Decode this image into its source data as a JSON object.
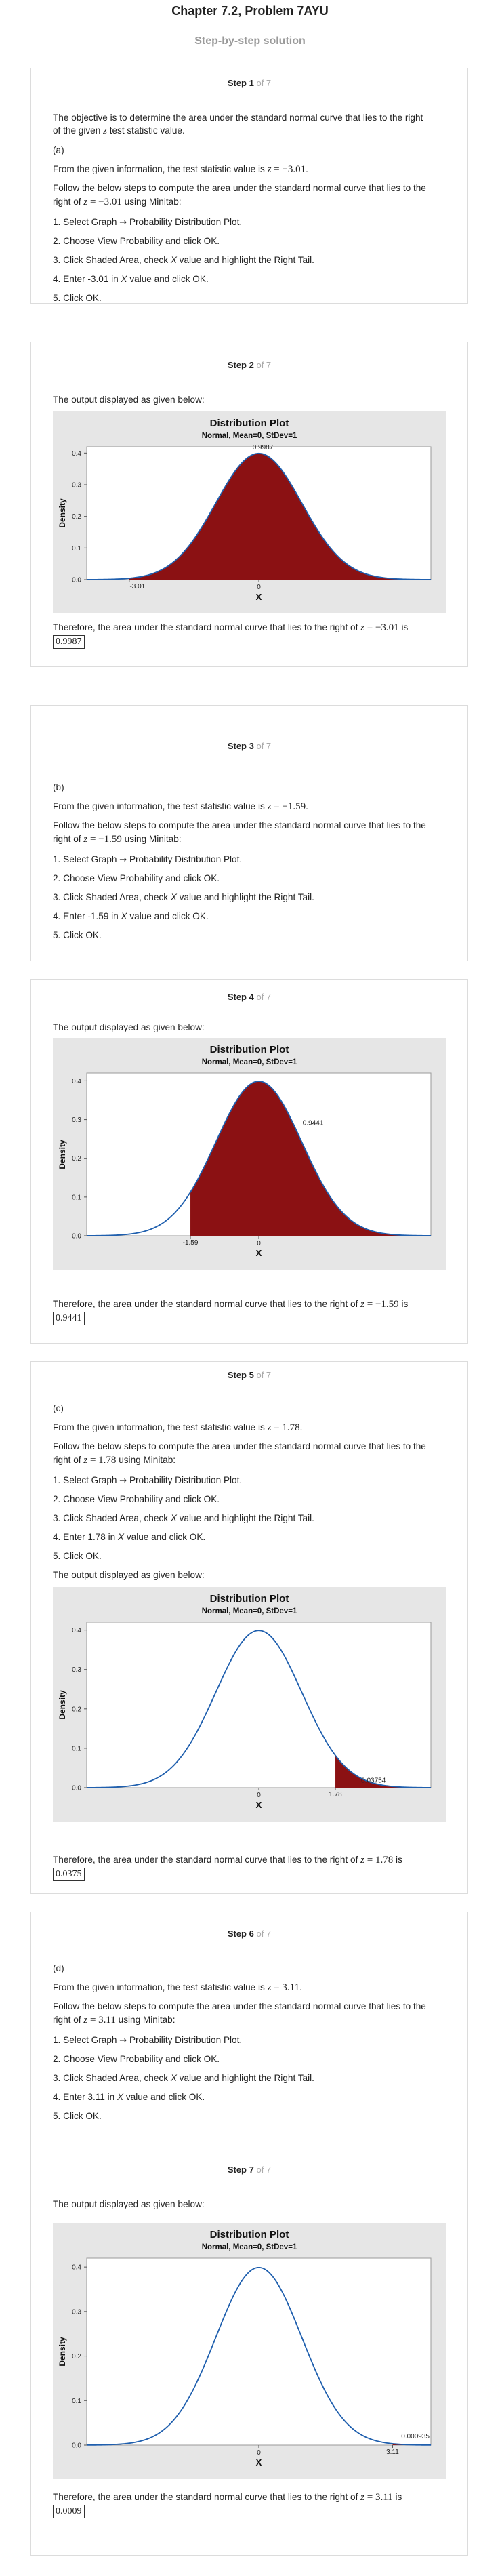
{
  "header": {
    "title": "Chapter 7.2, Problem 7AYU",
    "subtitle": "Step-by-step solution"
  },
  "step_of": "of 7",
  "menu": {
    "step1": "Select Graph",
    "arrow": "→",
    "step1b": "Probability Distribution Plot.",
    "step2": "Choose View Probability and click OK.",
    "step3a": "Click Shaded Area, check ",
    "step3b": "X",
    "step3c": " value and highlight the Right Tail.",
    "click_ok": "Click OK."
  },
  "nums": [
    "1.",
    "2.",
    "3.",
    "4.",
    "5."
  ],
  "follow_a": "Follow the below steps to compute the area under the standard normal curve that lies to the",
  "follow_b": "right of",
  "follow_c": "using Minitab:",
  "given": "From the given information, the test statistic value is",
  "output": "The output displayed as given below:",
  "therefore": "Therefore, the area under the standard normal curve that lies to the right of",
  "is": "is",
  "z_eq": "z = ",
  "step1": {
    "label": "Step 1",
    "objective_a": "The objective is to determine the area under the standard normal curve that lies to the right",
    "objective_b1": "of the given",
    "objective_b2": "z",
    "objective_b3": "test statistic value.",
    "part": "(a)",
    "z": "−3.01",
    "enter": "Enter -3.01 in ",
    "enter_x": "X",
    "enter_tail": " value and click OK."
  },
  "step2": {
    "label": "Step 2",
    "answer": "0.9987",
    "z": "−3.01"
  },
  "step3": {
    "label": "Step 3",
    "part": "(b)",
    "z": "−1.59",
    "enter": "Enter -1.59 in ",
    "enter_x": "X",
    "enter_tail": " value and click OK."
  },
  "step4": {
    "label": "Step 4",
    "answer": "0.9441",
    "z": "−1.59"
  },
  "step5": {
    "label": "Step 5",
    "part": "(c)",
    "z": "1.78",
    "enter": "Enter 1.78 in ",
    "enter_x": "X",
    "enter_tail": " value and click OK.",
    "answer": "0.0375"
  },
  "step6": {
    "label": "Step 6",
    "part": "(d)",
    "z": "3.11",
    "enter": "Enter 3.11 in ",
    "enter_x": "X",
    "enter_tail": " value and click OK."
  },
  "step7": {
    "label": "Step 7",
    "answer": "0.0009",
    "z": "3.11"
  },
  "colors": {
    "fill": "#8b1113",
    "curve": "#1f5fae",
    "panel": "#e6e6e6"
  },
  "chart_data": [
    {
      "type": "area",
      "title": "Distribution Plot",
      "subtitle": "Normal, Mean=0, StDev=1",
      "xlabel": "X",
      "ylabel": "Density",
      "yticks": [
        "0.0",
        "0.1",
        "0.2",
        "0.3",
        "0.4"
      ],
      "xlim": [
        -4,
        4
      ],
      "ylim": [
        0,
        0.42
      ],
      "shade_from": -3.01,
      "cut_label": "-3.01",
      "center_label": "0",
      "area_label": "0.9987",
      "area_value": 0.9987
    },
    {
      "type": "area",
      "title": "Distribution Plot",
      "subtitle": "Normal, Mean=0, StDev=1",
      "xlabel": "X",
      "ylabel": "Density",
      "yticks": [
        "0.0",
        "0.1",
        "0.2",
        "0.3",
        "0.4"
      ],
      "xlim": [
        -4,
        4
      ],
      "ylim": [
        0,
        0.42
      ],
      "shade_from": -1.59,
      "cut_label": "-1.59",
      "center_label": "0",
      "area_label": "0.9441",
      "area_value": 0.9441
    },
    {
      "type": "area",
      "title": "Distribution Plot",
      "subtitle": "Normal, Mean=0, StDev=1",
      "xlabel": "X",
      "ylabel": "Density",
      "yticks": [
        "0.0",
        "0.1",
        "0.2",
        "0.3",
        "0.4"
      ],
      "xlim": [
        -4,
        4
      ],
      "ylim": [
        0,
        0.42
      ],
      "shade_from": 1.78,
      "cut_label": "1.78",
      "center_label": "0",
      "area_label": "0.03754",
      "area_value": 0.03754
    },
    {
      "type": "area",
      "title": "Distribution Plot",
      "subtitle": "Normal, Mean=0, StDev=1",
      "xlabel": "X",
      "ylabel": "Density",
      "yticks": [
        "0.0",
        "0.1",
        "0.2",
        "0.3",
        "0.4"
      ],
      "xlim": [
        -4,
        4
      ],
      "ylim": [
        0,
        0.42
      ],
      "shade_from": 3.11,
      "cut_label": "3.11",
      "center_label": "0",
      "area_label": "0.000935",
      "area_value": 0.000935
    }
  ]
}
